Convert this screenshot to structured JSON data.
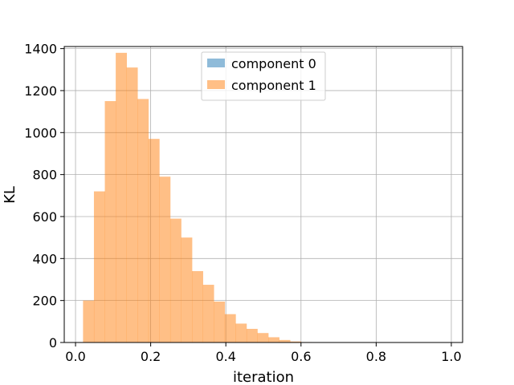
{
  "chart_data": {
    "type": "bar",
    "xlabel": "iteration",
    "ylabel": "KL",
    "xlim": [
      -0.03,
      1.03
    ],
    "ylim": [
      0,
      1410
    ],
    "xticks": [
      0.0,
      0.2,
      0.4,
      0.6,
      0.8,
      1.0
    ],
    "xtick_labels": [
      "0.0",
      "0.2",
      "0.4",
      "0.6",
      "0.8",
      "1.0"
    ],
    "yticks": [
      0,
      200,
      400,
      600,
      800,
      1000,
      1200,
      1400
    ],
    "ytick_labels": [
      "0",
      "200",
      "400",
      "600",
      "800",
      "1000",
      "1200",
      "1400"
    ],
    "grid": true,
    "legend_position": "upper-center",
    "bin_edges": [
      0.02,
      0.049,
      0.078,
      0.107,
      0.136,
      0.165,
      0.194,
      0.223,
      0.252,
      0.281,
      0.31,
      0.339,
      0.368,
      0.397,
      0.426,
      0.455,
      0.484,
      0.513,
      0.542,
      0.571,
      0.6,
      0.629,
      0.658,
      0.687,
      0.716,
      0.745,
      0.774,
      0.803,
      0.832,
      0.861,
      0.89,
      0.919,
      0.948,
      0.977
    ],
    "series": [
      {
        "name": "component 0",
        "color": "#1f77b4",
        "alpha": 0.5,
        "values": [
          0,
          0,
          0,
          0,
          0,
          0,
          0,
          0,
          0,
          0,
          0,
          0,
          0,
          0,
          0,
          0,
          0,
          0,
          0,
          0,
          0,
          0,
          0,
          0,
          0,
          0,
          0,
          0,
          0,
          0,
          0,
          0,
          0
        ]
      },
      {
        "name": "component 1",
        "color": "#ff7f0e",
        "alpha": 0.5,
        "values": [
          200,
          720,
          1150,
          1380,
          1310,
          1160,
          970,
          790,
          590,
          500,
          340,
          275,
          195,
          135,
          90,
          65,
          45,
          25,
          12,
          5,
          2,
          0,
          0,
          0,
          0,
          0,
          0,
          0,
          0,
          0,
          0,
          0,
          0
        ]
      }
    ]
  }
}
